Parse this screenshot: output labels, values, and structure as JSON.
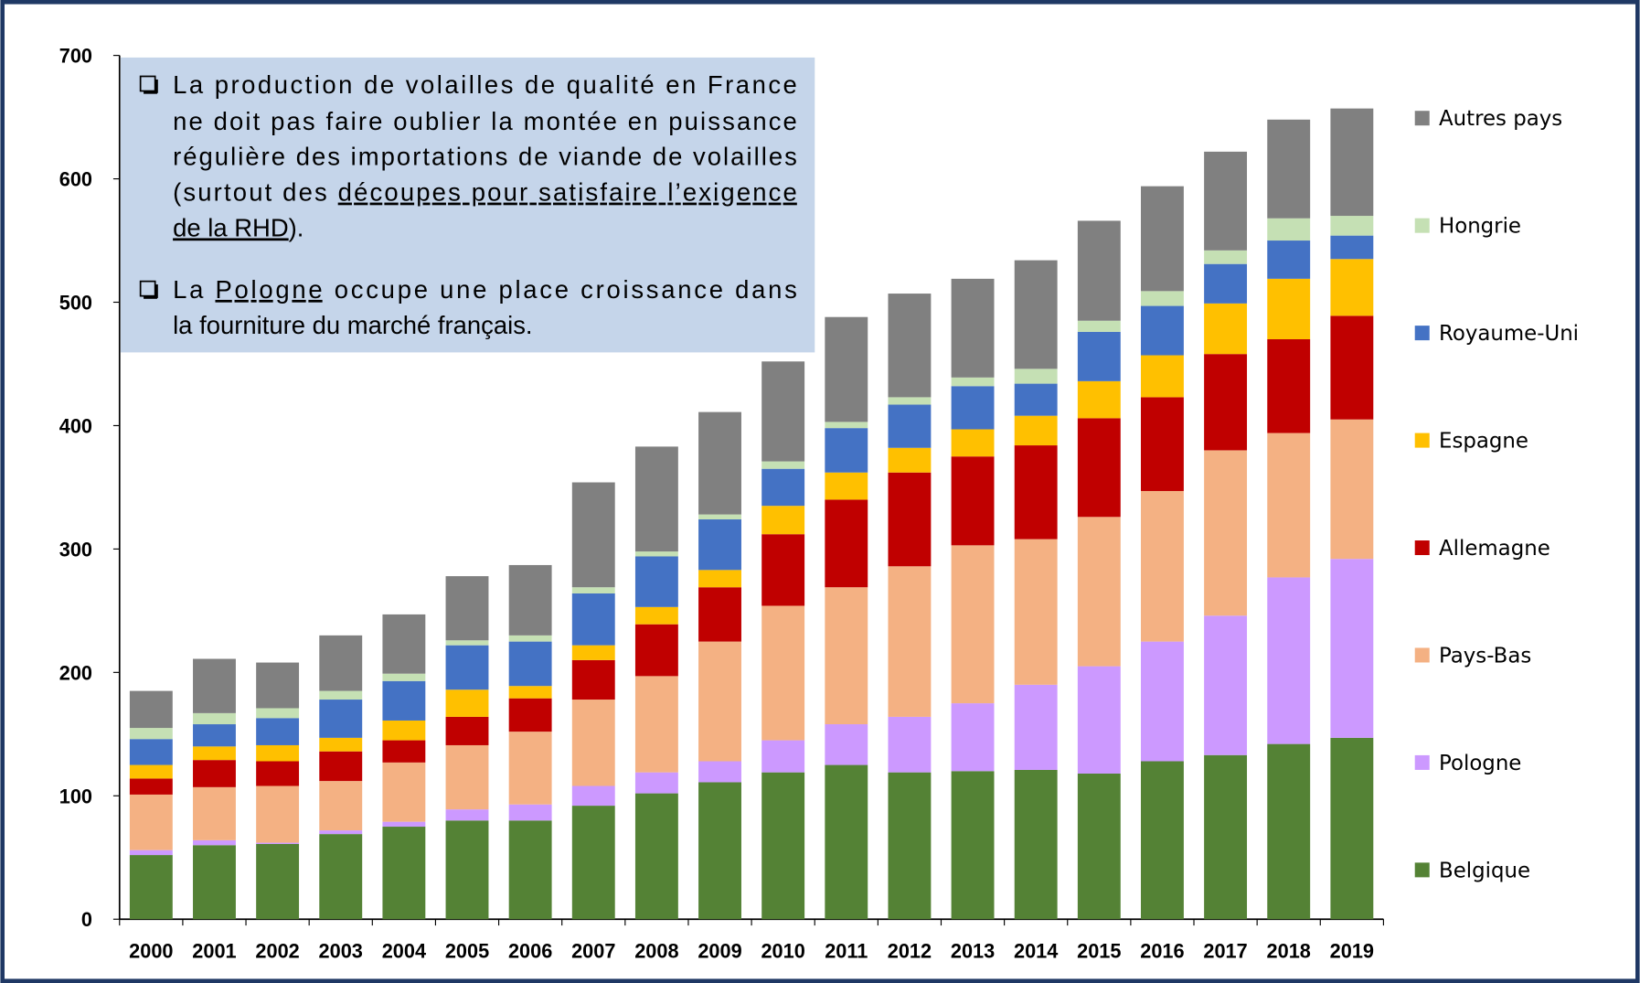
{
  "chart_data": {
    "type": "stacked_bar",
    "categories": [
      "2000",
      "2001",
      "2002",
      "2003",
      "2004",
      "2005",
      "2006",
      "2007",
      "2008",
      "2009",
      "2010",
      "2011",
      "2012",
      "2013",
      "2014",
      "2015",
      "2016",
      "2017",
      "2018",
      "2019"
    ],
    "series": [
      {
        "name": "Belgique",
        "color": "#548235",
        "values": [
          52,
          60,
          61,
          69,
          75,
          80,
          80,
          92,
          102,
          111,
          119,
          125,
          119,
          120,
          121,
          118,
          128,
          133,
          142,
          147
        ]
      },
      {
        "name": "Pologne",
        "color": "#cc99ff",
        "values": [
          4,
          4,
          1,
          3,
          4,
          9,
          13,
          16,
          17,
          17,
          26,
          33,
          45,
          55,
          69,
          87,
          97,
          113,
          135,
          145
        ]
      },
      {
        "name": "Pays-Bas",
        "color": "#f4b183",
        "values": [
          45,
          43,
          46,
          40,
          48,
          52,
          59,
          70,
          78,
          97,
          109,
          111,
          122,
          128,
          118,
          121,
          122,
          134,
          117,
          113
        ]
      },
      {
        "name": "Allemagne",
        "color": "#c00000",
        "values": [
          13,
          22,
          20,
          24,
          18,
          23,
          27,
          32,
          42,
          44,
          58,
          71,
          76,
          72,
          76,
          80,
          76,
          78,
          76,
          84
        ]
      },
      {
        "name": "Espagne",
        "color": "#ffc000",
        "values": [
          11,
          11,
          13,
          11,
          16,
          22,
          10,
          12,
          14,
          14,
          23,
          22,
          20,
          22,
          24,
          30,
          34,
          41,
          49,
          46
        ]
      },
      {
        "name": "Royaume-Uni",
        "color": "#4472c4",
        "values": [
          21,
          18,
          22,
          31,
          32,
          36,
          36,
          42,
          41,
          41,
          30,
          36,
          35,
          35,
          26,
          40,
          40,
          32,
          31,
          19
        ]
      },
      {
        "name": "Hongrie",
        "color": "#c5e0b4",
        "values": [
          9,
          9,
          8,
          7,
          6,
          4,
          5,
          5,
          4,
          4,
          6,
          5,
          6,
          7,
          12,
          9,
          12,
          11,
          18,
          16
        ]
      },
      {
        "name": "Autres pays",
        "color": "#808080",
        "values": [
          30,
          44,
          37,
          45,
          48,
          52,
          57,
          85,
          85,
          83,
          81,
          85,
          84,
          80,
          88,
          81,
          85,
          80,
          80,
          87
        ]
      }
    ],
    "ylim": [
      0,
      700
    ],
    "yticks": [
      0,
      100,
      200,
      300,
      400,
      500,
      600,
      700
    ],
    "grid": false,
    "legend": "right",
    "annotation": {
      "paragraphs": [
        {
          "lines": [
            [
              {
                "text": "La production de volailles de qualité en France"
              }
            ],
            [
              {
                "text": "ne doit pas faire oublier la montée en puissance"
              }
            ],
            [
              {
                "text": "régulière des importations de viande de volailles"
              }
            ],
            [
              {
                "text": "(surtout des "
              },
              {
                "text": "découpes pour satisfaire l’exigence",
                "underline": true
              }
            ],
            [
              {
                "text": "de la RHD",
                "underline": true
              },
              {
                "text": ")."
              }
            ]
          ]
        },
        {
          "lines": [
            [
              {
                "text": "La "
              },
              {
                "text": "Pologne",
                "underline": true
              },
              {
                "text": " occupe une place croissance dans"
              }
            ],
            [
              {
                "text": "la fourniture du marché français."
              }
            ]
          ]
        }
      ]
    }
  }
}
